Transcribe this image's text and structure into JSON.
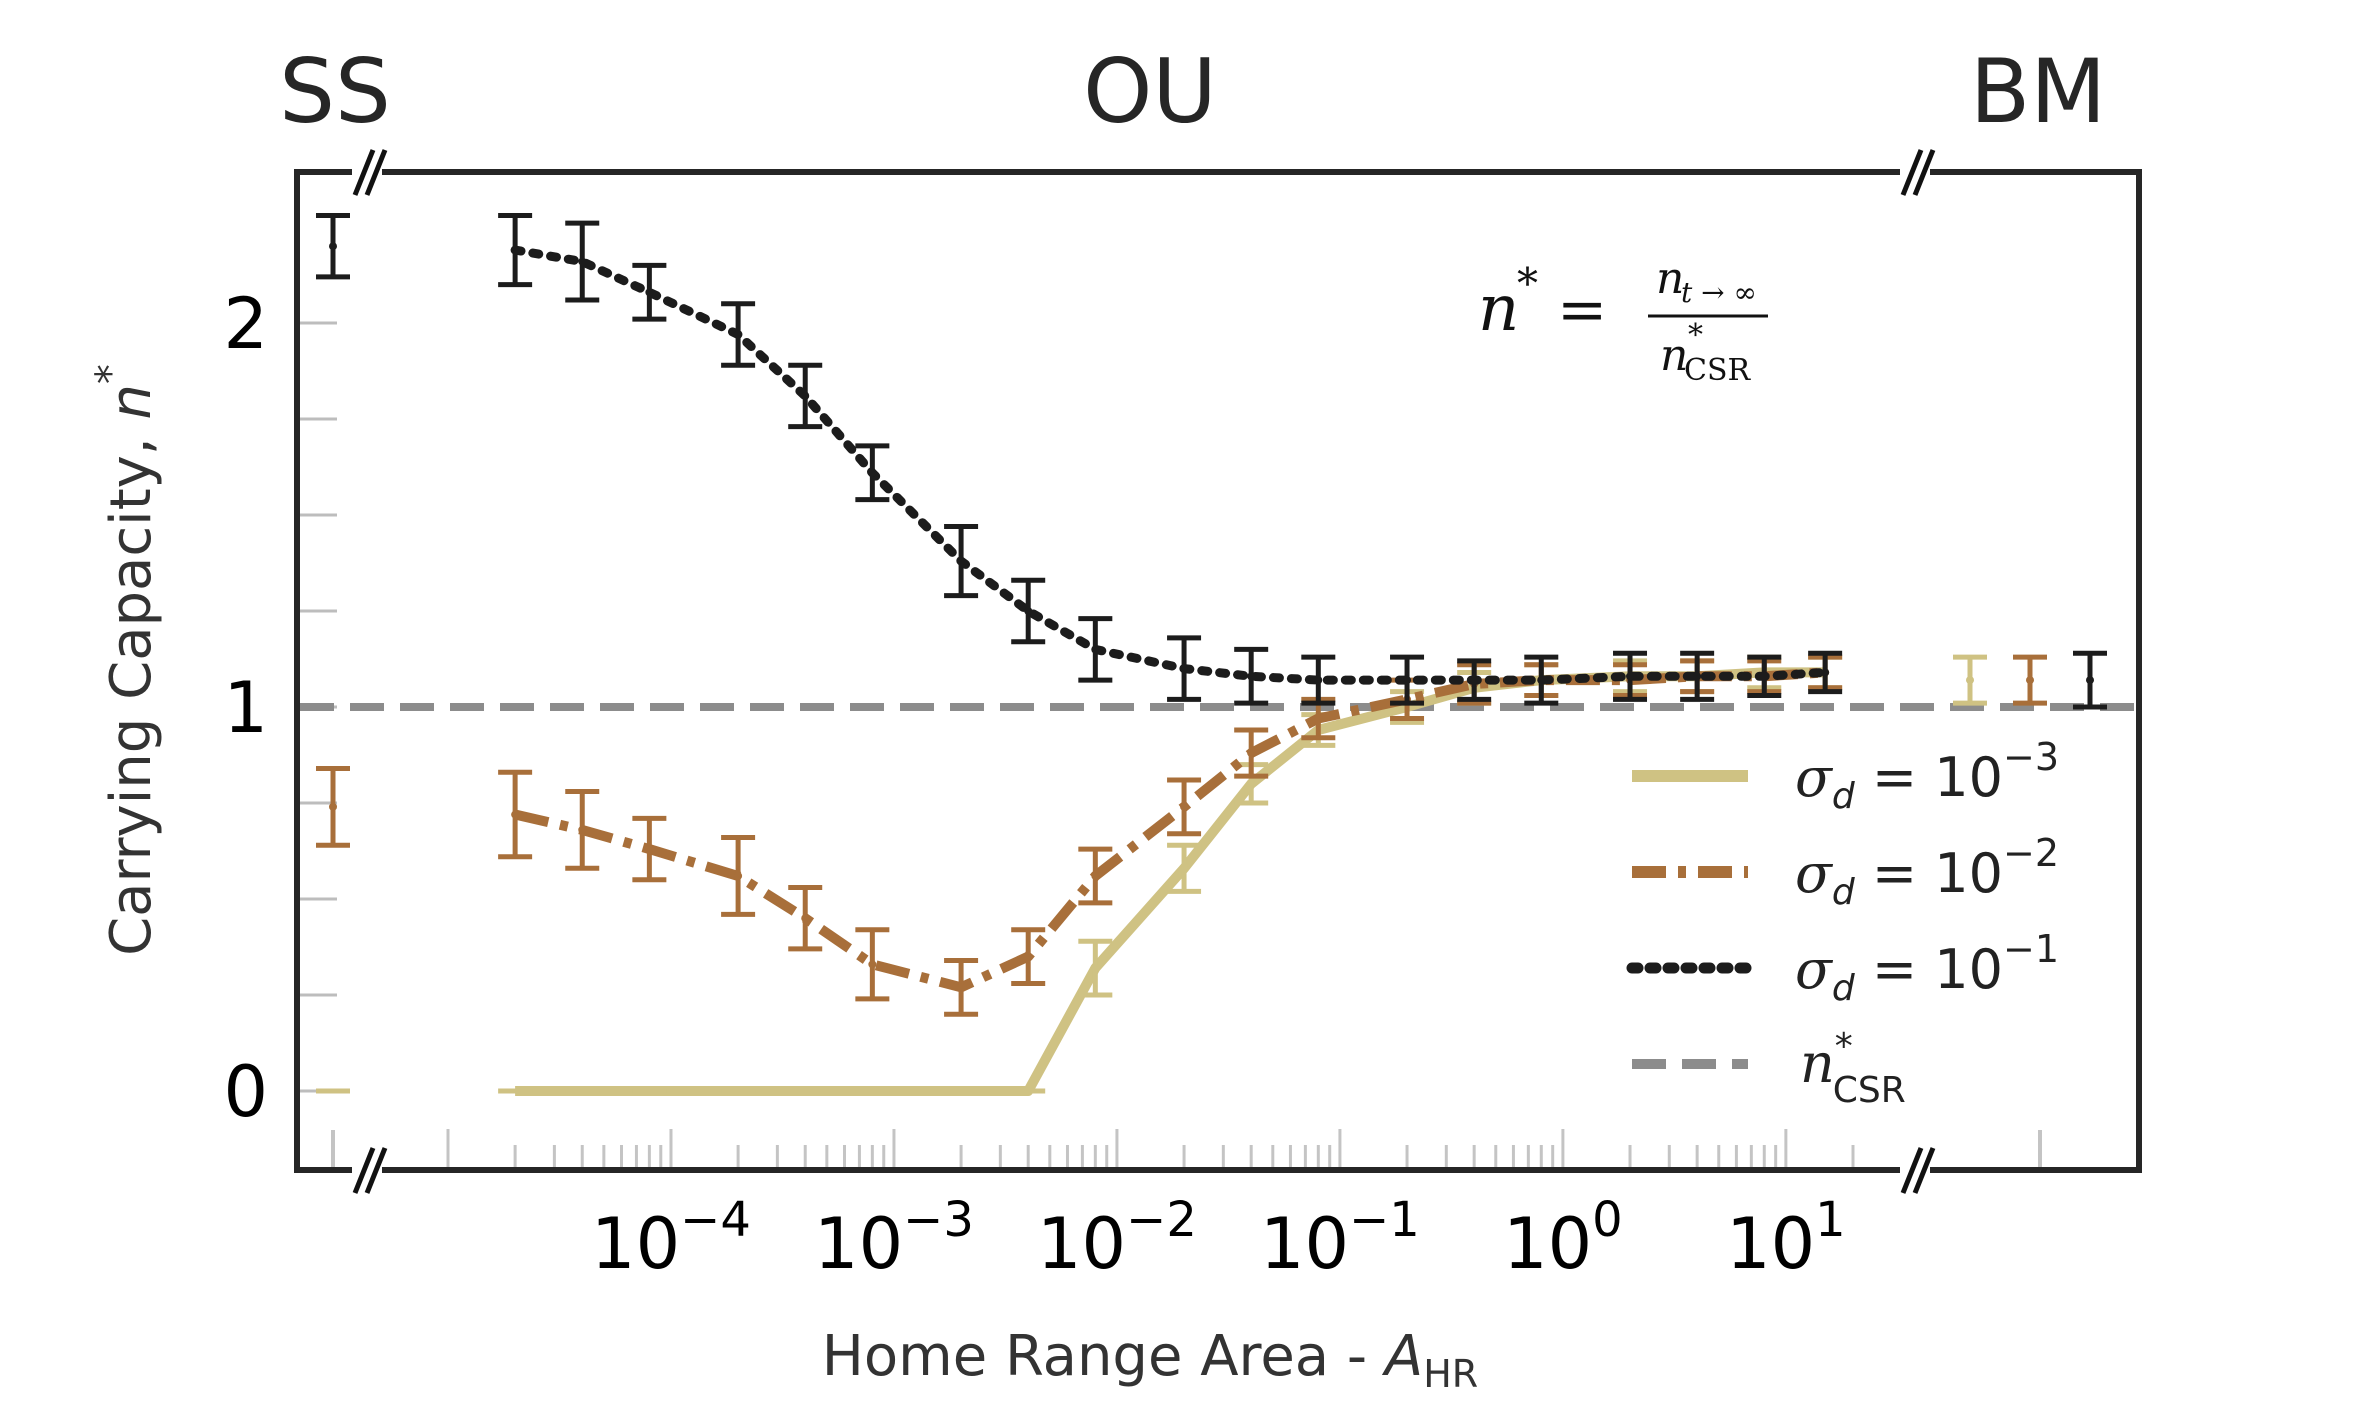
{
  "chart_data": {
    "type": "line",
    "title": "",
    "xlabel": "Home Range Area - ",
    "xlabel_sym": "A",
    "xlabel_sub": "HR",
    "ylabel": "Carrying Capacity, ",
    "ylabel_sym": "n",
    "ylabel_sup": "*",
    "xscale": "log",
    "xlim": [
      1e-05,
      20
    ],
    "ylim": [
      -0.2,
      2.4
    ],
    "regimes": [
      "SS",
      "OU",
      "BM"
    ],
    "y_ticks": [
      {
        "v": 0,
        "label": "0"
      },
      {
        "v": 1,
        "label": "1"
      },
      {
        "v": 2,
        "label": "2"
      }
    ],
    "x_ticks": [
      {
        "exp": -4,
        "base": "10",
        "sup": "−4"
      },
      {
        "exp": -3,
        "base": "10",
        "sup": "−3"
      },
      {
        "exp": -2,
        "base": "10",
        "sup": "−2"
      },
      {
        "exp": -1,
        "base": "10",
        "sup": "−1"
      },
      {
        "exp": 0,
        "base": "10",
        "sup": "0"
      },
      {
        "exp": 1,
        "base": "10",
        "sup": "1"
      }
    ],
    "x": [
      2e-05,
      4e-05,
      8e-05,
      0.0002,
      0.0004,
      0.0008,
      0.002,
      0.004,
      0.008,
      0.02,
      0.04,
      0.08,
      0.2,
      0.4,
      0.8,
      2,
      4,
      8,
      15
    ],
    "series": [
      {
        "name": "σ_d = 10^−3",
        "label_sym": "σ",
        "label_sub": "d",
        "label_eq": " =  10",
        "label_sup": "−3",
        "color": "#cfc283",
        "dash": "solid",
        "values": [
          0,
          0,
          0,
          0,
          0,
          0,
          0,
          0,
          0.32,
          0.58,
          0.8,
          0.94,
          1.0,
          1.05,
          1.07,
          1.08,
          1.08,
          1.09,
          1.09
        ],
        "err": [
          0,
          0,
          0,
          0,
          0,
          0,
          0,
          0,
          0.07,
          0.06,
          0.05,
          0.04,
          0.04,
          0.04,
          0.04,
          0.04,
          0.04,
          0.04,
          0.04
        ],
        "ss": {
          "value": 0,
          "err": 0
        },
        "bm": {
          "value": 1.07,
          "err": 0.06
        }
      },
      {
        "name": "σ_d = 10^−2",
        "label_sym": "σ",
        "label_sub": "d",
        "label_eq": " =  10",
        "label_sup": "−2",
        "color": "#a86f3a",
        "dash": "dashdot",
        "values": [
          0.72,
          0.68,
          0.63,
          0.56,
          0.45,
          0.33,
          0.27,
          0.35,
          0.56,
          0.74,
          0.88,
          0.97,
          1.02,
          1.06,
          1.07,
          1.07,
          1.08,
          1.08,
          1.09
        ],
        "err": [
          0.11,
          0.1,
          0.08,
          0.1,
          0.08,
          0.09,
          0.07,
          0.07,
          0.07,
          0.07,
          0.06,
          0.05,
          0.05,
          0.05,
          0.04,
          0.04,
          0.04,
          0.04,
          0.04
        ],
        "ss": {
          "value": 0.74,
          "err": 0.1
        },
        "bm": {
          "value": 1.07,
          "err": 0.06
        }
      },
      {
        "name": "σ_d = 10^−1",
        "label_sym": "σ",
        "label_sub": "d",
        "label_eq": " =  10",
        "label_sup": "−1",
        "color": "#1c1c1c",
        "dash": "dotted",
        "values": [
          2.19,
          2.16,
          2.08,
          1.97,
          1.81,
          1.61,
          1.38,
          1.25,
          1.15,
          1.1,
          1.08,
          1.07,
          1.07,
          1.07,
          1.07,
          1.08,
          1.08,
          1.08,
          1.09
        ],
        "err": [
          0.09,
          0.1,
          0.07,
          0.08,
          0.08,
          0.07,
          0.09,
          0.08,
          0.08,
          0.08,
          0.07,
          0.06,
          0.06,
          0.05,
          0.06,
          0.06,
          0.06,
          0.05,
          0.05
        ],
        "ss": {
          "value": 2.2,
          "err": 0.08
        },
        "bm": {
          "value": 1.07,
          "err": 0.07
        }
      }
    ],
    "reference_line": {
      "value": 1.0,
      "color": "#8c8c8c",
      "label_sym": "n",
      "label_sup": "*",
      "label_sub": "CSR"
    },
    "annotation": {
      "lhs": "n",
      "lhs_sup": "*",
      "eq": " = ",
      "num": "n",
      "num_sub": "t → ∞",
      "den": "n",
      "den_sup": "*",
      "den_sub": "CSR"
    },
    "legend_position": "center-right"
  }
}
